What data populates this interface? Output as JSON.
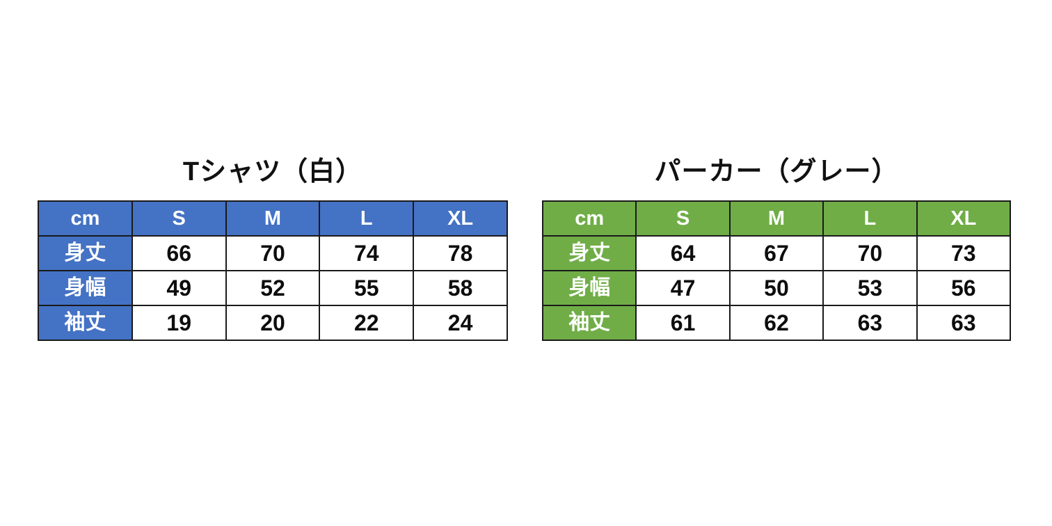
{
  "page": {
    "background_color": "#ffffff"
  },
  "chart_data": [
    {
      "type": "table",
      "title": "Tシャツ（白）",
      "accent_color": "#4472C4",
      "columns": [
        "cm",
        "S",
        "M",
        "L",
        "XL"
      ],
      "rows": [
        [
          "身丈",
          "66",
          "70",
          "74",
          "78"
        ],
        [
          "身幅",
          "49",
          "52",
          "55",
          "58"
        ],
        [
          "袖丈",
          "19",
          "20",
          "22",
          "24"
        ]
      ]
    },
    {
      "type": "table",
      "title": "パーカー（グレー）",
      "accent_color": "#70AD47",
      "columns": [
        "cm",
        "S",
        "M",
        "L",
        "XL"
      ],
      "rows": [
        [
          "身丈",
          "64",
          "67",
          "70",
          "73"
        ],
        [
          "身幅",
          "47",
          "50",
          "53",
          "56"
        ],
        [
          "袖丈",
          "61",
          "62",
          "63",
          "63"
        ]
      ]
    }
  ]
}
